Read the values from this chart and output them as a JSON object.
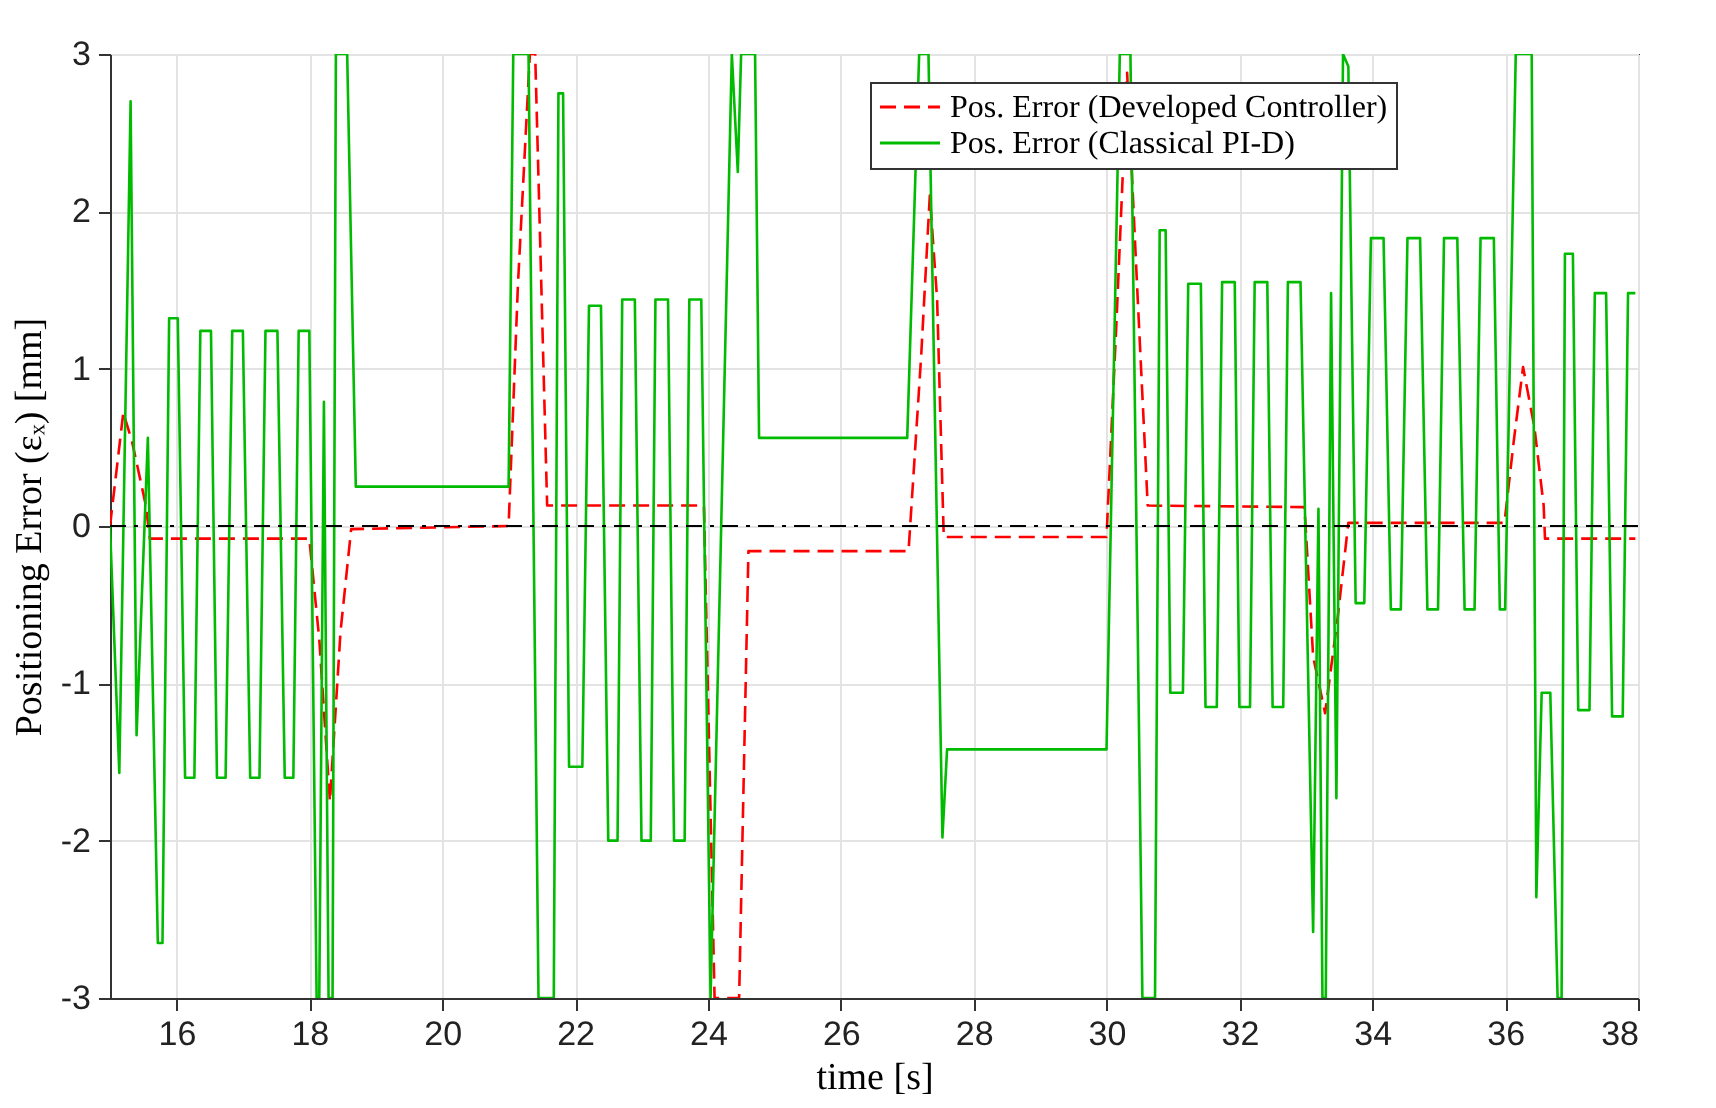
{
  "chart_data": {
    "type": "line",
    "xlabel": "time [s]",
    "ylabel": "Positioning Error (εₓ) [mm]",
    "xlim": [
      15,
      38
    ],
    "xticks": [
      16,
      18,
      20,
      22,
      24,
      26,
      28,
      30,
      32,
      34,
      36,
      38
    ],
    "ylim": [
      -3,
      3
    ],
    "yticks": [
      -3,
      -2,
      -1,
      0,
      1,
      2,
      3
    ],
    "grid": true,
    "legend": "top right",
    "ref_lines": [
      {
        "axis": "y",
        "value": 0,
        "color": "#000000",
        "line_style": "dashed"
      }
    ],
    "series": [
      {
        "name": "Pos. Error (Developed Controller)",
        "color": "#ff0000",
        "line_style": "dashed",
        "x": [
          15.0,
          15.2,
          15.33,
          15.54,
          15.6,
          18.0,
          18.15,
          18.31,
          18.47,
          18.63,
          21.0,
          21.14,
          21.32,
          21.4,
          21.58,
          23.94,
          24.1,
          24.47,
          24.61,
          27.02,
          27.21,
          27.34,
          27.45,
          27.55,
          30.0,
          30.15,
          30.31,
          30.47,
          30.62,
          32.98,
          33.11,
          33.29,
          33.48,
          33.64,
          35.99,
          36.13,
          36.27,
          36.44,
          36.58,
          36.6,
          37.96
        ],
        "values": [
          0,
          0.72,
          0.54,
          0.13,
          -0.08,
          -0.08,
          -0.72,
          -1.75,
          -0.67,
          -0.02,
          0,
          1.53,
          3,
          3,
          0.13,
          0.13,
          -3,
          -3,
          -0.16,
          -0.16,
          1.08,
          2.1,
          1.44,
          -0.07,
          -0.07,
          1.3,
          2.88,
          1.44,
          0.13,
          0.12,
          -0.83,
          -1.19,
          -0.58,
          0.02,
          0.02,
          0.54,
          1.01,
          0.63,
          0.13,
          -0.08,
          -0.08
        ]
      },
      {
        "name": "Pos. Error (Classical PI-D)",
        "color": "#00bb00",
        "line_style": "solid",
        "x": [
          15.0,
          15.14,
          15.31,
          15.4,
          15.57,
          15.72,
          15.79,
          15.89,
          16.02,
          16.13,
          16.27,
          16.36,
          16.52,
          16.61,
          16.74,
          16.84,
          17.0,
          17.11,
          17.25,
          17.34,
          17.52,
          17.63,
          17.76,
          17.84,
          18.0,
          18.11,
          18.15,
          18.22,
          18.29,
          18.35,
          18.4,
          18.57,
          18.7,
          21.0,
          21.07,
          21.3,
          21.45,
          21.68,
          21.75,
          21.82,
          21.91,
          22.11,
          22.21,
          22.39,
          22.5,
          22.64,
          22.71,
          22.9,
          23.0,
          23.14,
          23.21,
          23.4,
          23.49,
          23.65,
          23.72,
          23.9,
          24.04,
          24.36,
          24.45,
          24.5,
          24.71,
          24.77,
          27.0,
          27.18,
          27.32,
          27.53,
          27.6,
          30.0,
          30.2,
          30.36,
          30.54,
          30.73,
          30.8,
          30.89,
          30.96,
          31.15,
          31.23,
          31.42,
          31.49,
          31.66,
          31.74,
          31.93,
          32.0,
          32.16,
          32.23,
          32.42,
          32.5,
          32.66,
          32.73,
          32.92,
          33.11,
          33.19,
          33.25,
          33.3,
          33.38,
          33.46,
          33.56,
          33.64,
          33.75,
          33.88,
          33.98,
          34.17,
          34.28,
          34.43,
          34.53,
          34.72,
          34.83,
          34.99,
          35.08,
          35.28,
          35.39,
          35.54,
          35.63,
          35.83,
          35.92,
          36.0,
          36.16,
          36.4,
          36.47,
          36.55,
          36.68,
          36.79,
          36.85,
          36.9,
          37.02,
          37.1,
          37.27,
          37.35,
          37.52,
          37.61,
          37.77,
          37.85,
          37.96
        ],
        "values": [
          0,
          -1.57,
          2.7,
          -1.33,
          0.56,
          -2.65,
          -2.65,
          1.32,
          1.32,
          -1.6,
          -1.6,
          1.24,
          1.24,
          -1.6,
          -1.6,
          1.24,
          1.24,
          -1.6,
          -1.6,
          1.24,
          1.24,
          -1.6,
          -1.6,
          1.24,
          1.24,
          -3,
          -3,
          0.79,
          -3,
          -3,
          3,
          3,
          0.25,
          0.25,
          3,
          3,
          -3,
          -3,
          2.75,
          2.75,
          -1.53,
          -1.53,
          1.4,
          1.4,
          -2.0,
          -2.0,
          1.44,
          1.44,
          -2.0,
          -2.0,
          1.44,
          1.44,
          -2.0,
          -2.0,
          1.44,
          1.44,
          -3,
          3,
          2.25,
          3,
          3,
          0.56,
          0.56,
          3,
          3,
          -1.98,
          -1.42,
          -1.42,
          3,
          3,
          -3,
          -3,
          1.88,
          1.88,
          -1.06,
          -1.06,
          1.54,
          1.54,
          -1.15,
          -1.15,
          1.55,
          1.55,
          -1.15,
          -1.15,
          1.55,
          1.55,
          -1.15,
          -1.15,
          1.55,
          1.55,
          -2.58,
          0.11,
          -3,
          -3,
          1.48,
          -1.73,
          3,
          2.92,
          -0.49,
          -0.49,
          1.83,
          1.83,
          -0.53,
          -0.53,
          1.83,
          1.83,
          -0.53,
          -0.53,
          1.83,
          1.83,
          -0.53,
          -0.53,
          1.83,
          1.83,
          -0.53,
          -0.53,
          3,
          3,
          -2.36,
          -1.06,
          -1.06,
          -3,
          -3,
          1.73,
          1.73,
          -1.17,
          -1.17,
          1.48,
          1.48,
          -1.21,
          -1.21,
          1.48,
          1.48
        ]
      }
    ]
  }
}
